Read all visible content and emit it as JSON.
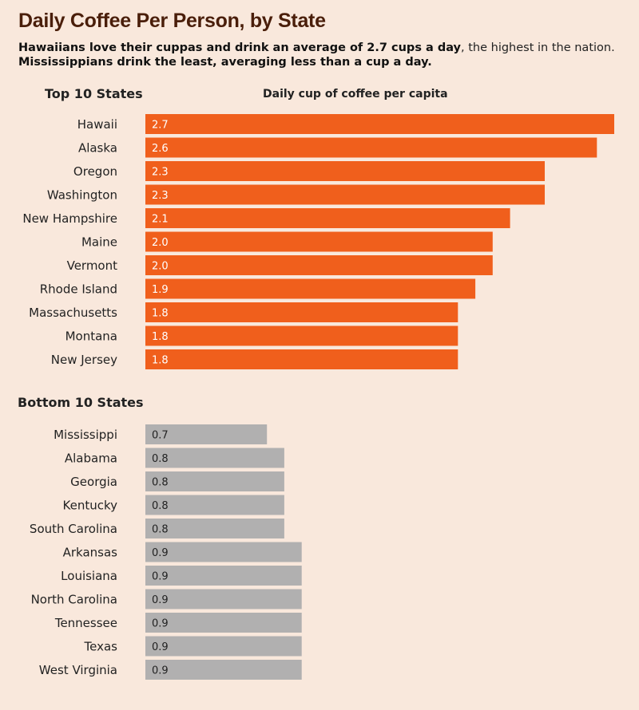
{
  "header": {
    "title": "Daily Coffee Per Person, by State",
    "subtitle_bold_1": "Hawaiians love their cuppas and drink an average of 2.7 cups a day",
    "subtitle_rest_1": ", the highest in the nation.",
    "subtitle_bold_2": "Mississippians drink the least, averaging less than a cup a day."
  },
  "colors": {
    "top_bar": "#f05f1c",
    "bottom_bar": "#b1b0b0",
    "top_value_text": "#ffffff",
    "bottom_value_text": "#222222"
  },
  "chart_data": {
    "type": "bar",
    "orientation": "horizontal",
    "title": "Daily Coffee Per Person, by State",
    "xlabel": "Daily cup of coffee per capita",
    "ylabel": "",
    "xlim": [
      0,
      2.7
    ],
    "grid": false,
    "groups": [
      {
        "name": "Top 10 States",
        "categories": [
          "Hawaii",
          "Alaska",
          "Oregon",
          "Washington",
          "New Hampshire",
          "Maine",
          "Vermont",
          "Rhode Island",
          "Massachusetts",
          "Montana",
          "New Jersey"
        ],
        "values": [
          2.7,
          2.6,
          2.3,
          2.3,
          2.1,
          2.0,
          2.0,
          1.9,
          1.8,
          1.8,
          1.8
        ],
        "labels": [
          "2.7",
          "2.6",
          "2.3",
          "2.3",
          "2.1",
          "2.0",
          "2.0",
          "1.9",
          "1.8",
          "1.8",
          "1.8"
        ]
      },
      {
        "name": "Bottom 10 States",
        "categories": [
          "Mississippi",
          "Alabama",
          "Georgia",
          "Kentucky",
          "South Carolina",
          "Arkansas",
          "Louisiana",
          "North Carolina",
          "Tennessee",
          "Texas",
          "West Virginia"
        ],
        "values": [
          0.7,
          0.8,
          0.8,
          0.8,
          0.8,
          0.9,
          0.9,
          0.9,
          0.9,
          0.9,
          0.9
        ],
        "labels": [
          "0.7",
          "0.8",
          "0.8",
          "0.8",
          "0.8",
          "0.9",
          "0.9",
          "0.9",
          "0.9",
          "0.9",
          "0.9"
        ]
      }
    ]
  }
}
